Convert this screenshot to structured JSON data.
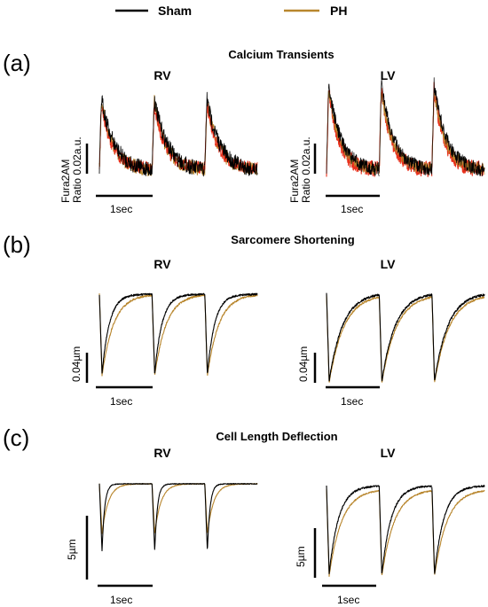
{
  "legend": {
    "items": [
      {
        "name": "Sham",
        "color": "#000000"
      },
      {
        "name": "PH",
        "color": "#b8862d"
      }
    ]
  },
  "colors": {
    "sham": "#000000",
    "ph": "#b8862d",
    "ph_calcium_red": "#e8301c"
  },
  "chart_data": [
    {
      "type": "line",
      "panel_label": "(a)",
      "title": "Calcium Transients",
      "plots": [
        {
          "chamber": "RV",
          "beats": 3,
          "scale_bar_y": "Fura2AM Ratio 0.02a.u.",
          "scale_bar_x": "1sec"
        },
        {
          "chamber": "LV",
          "beats": 3,
          "scale_bar_y": "Fura2AM Ratio 0.02a.u.",
          "scale_bar_x": "1sec"
        }
      ]
    },
    {
      "type": "line",
      "panel_label": "(b)",
      "title": "Sarcomere Shortening",
      "plots": [
        {
          "chamber": "RV",
          "beats": 3,
          "scale_bar_y": "0.04µm",
          "scale_bar_x": "1sec"
        },
        {
          "chamber": "LV",
          "beats": 3,
          "scale_bar_y": "0.04µm",
          "scale_bar_x": "1sec"
        }
      ]
    },
    {
      "type": "line",
      "panel_label": "(c)",
      "title": "Cell Length Deflection",
      "plots": [
        {
          "chamber": "RV",
          "beats": 3,
          "scale_bar_y": "5µm",
          "scale_bar_x": "1sec"
        },
        {
          "chamber": "LV",
          "beats": 3,
          "scale_bar_y": "5µm",
          "scale_bar_x": "1sec"
        }
      ]
    }
  ]
}
